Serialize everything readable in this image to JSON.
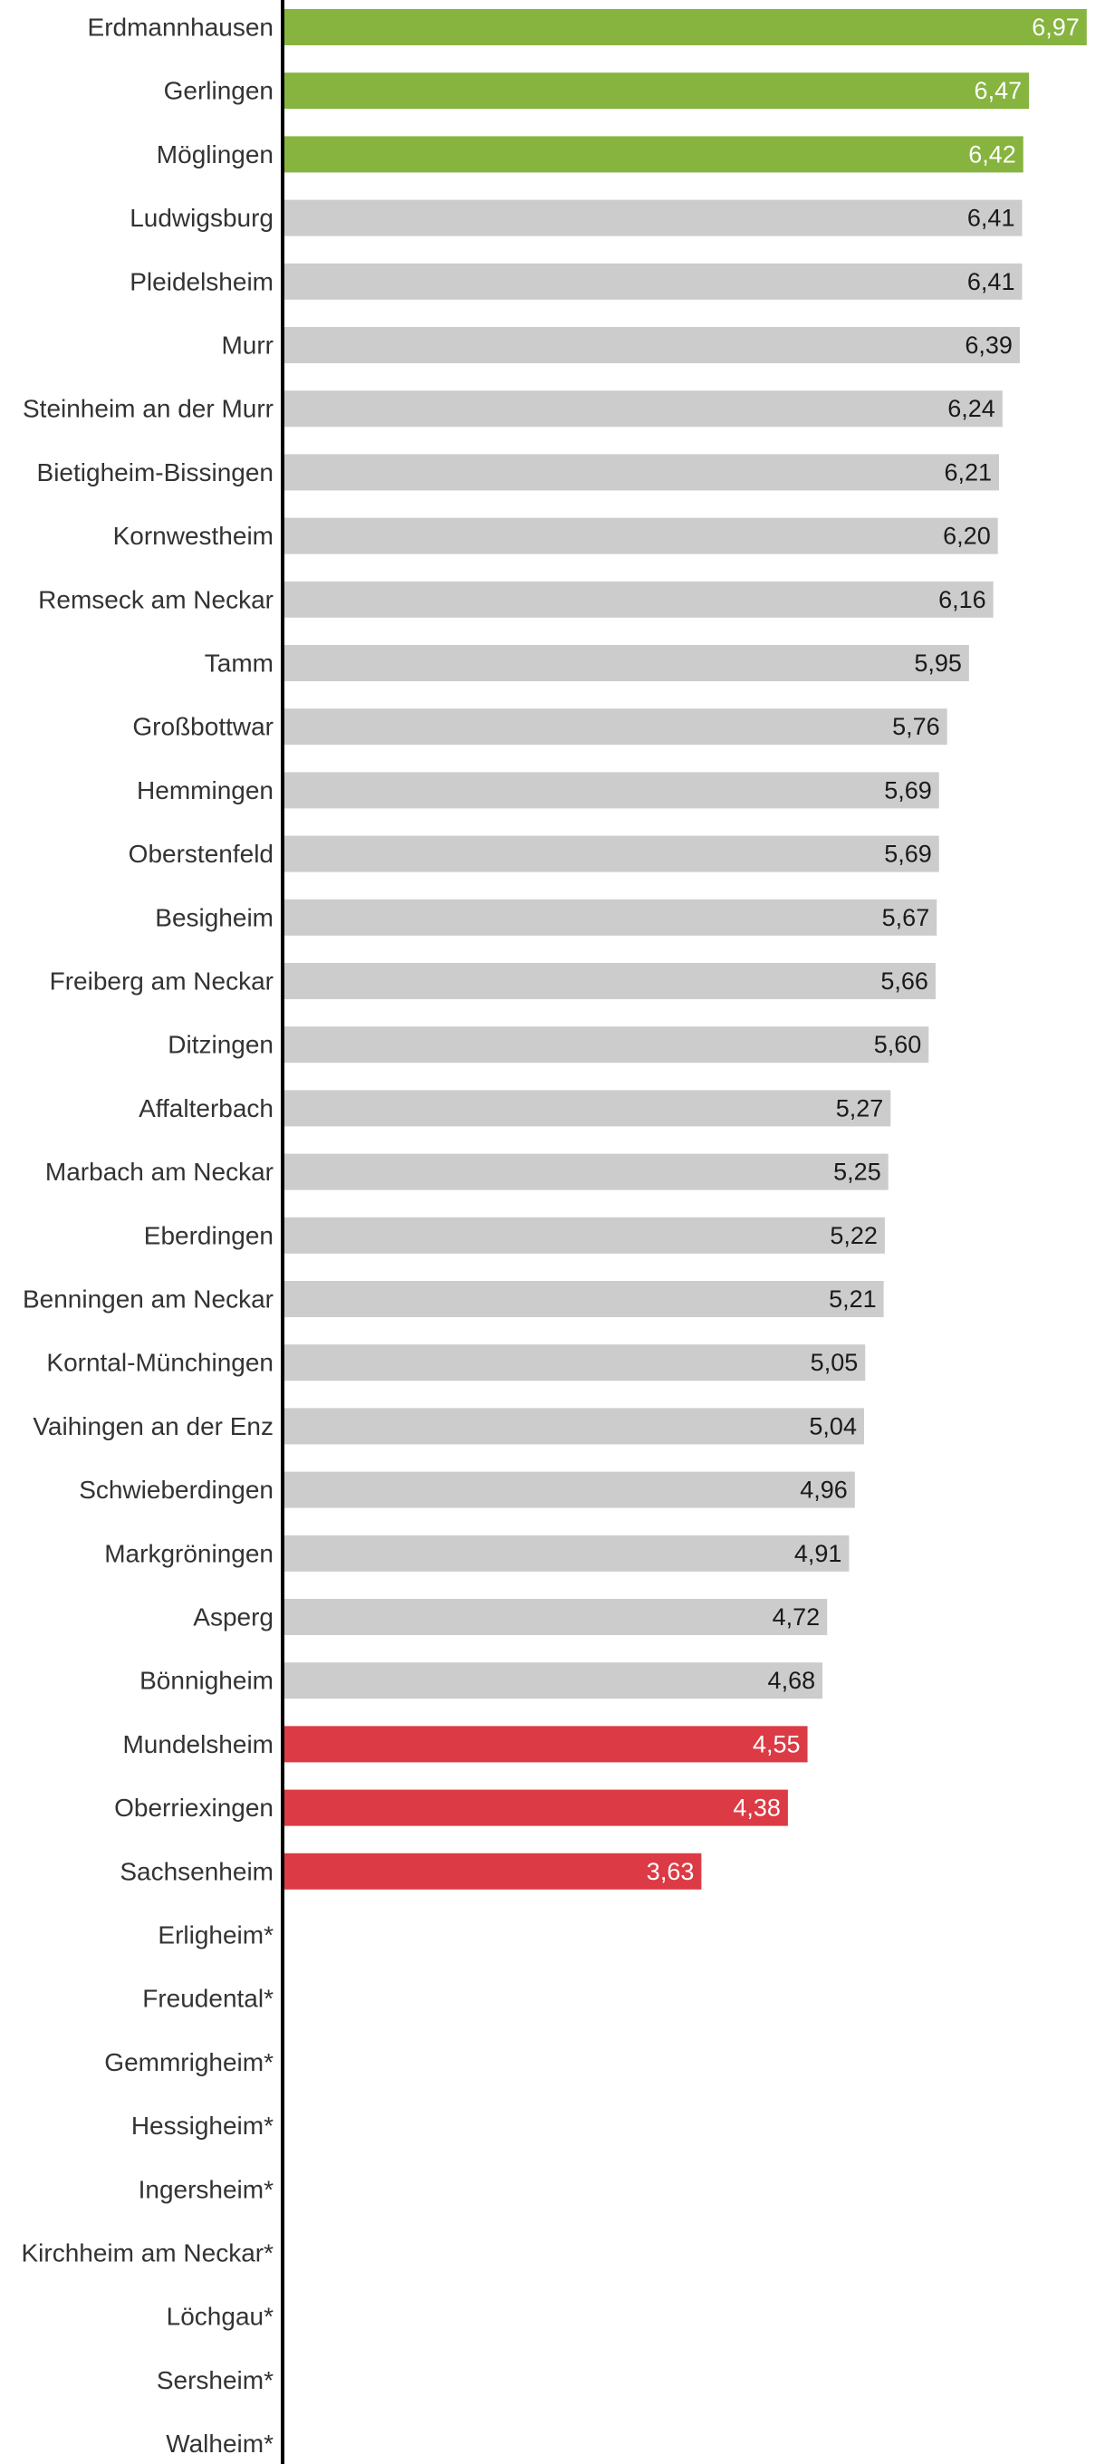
{
  "chart_data": {
    "type": "bar",
    "orientation": "horizontal",
    "title": "",
    "xlabel": "",
    "ylabel": "",
    "xlim": [
      0,
      7.05
    ],
    "grid": false,
    "legend": "none",
    "value_labels": true,
    "colors": {
      "top": "#87b33f",
      "default": "#cccccc",
      "bottom": "#dc3a44",
      "axis": "#000000",
      "category_text": "#333333",
      "value_text_dark": "#1a1a1a",
      "value_text_light": "#ffffff"
    },
    "categories": [
      "Erdmannhausen",
      "Gerlingen",
      "Möglingen",
      "Ludwigsburg",
      "Pleidelsheim",
      "Murr",
      "Steinheim an der Murr",
      "Bietigheim-Bissingen",
      "Kornwestheim",
      "Remseck am Neckar",
      "Tamm",
      "Großbottwar",
      "Hemmingen",
      "Oberstenfeld",
      "Besigheim",
      "Freiberg am Neckar",
      "Ditzingen",
      "Affalterbach",
      "Marbach am Neckar",
      "Eberdingen",
      "Benningen am Neckar",
      "Korntal-Münchingen",
      "Vaihingen an der Enz",
      "Schwieberdingen",
      "Markgröningen",
      "Asperg",
      "Bönnigheim",
      "Mundelsheim",
      "Oberriexingen",
      "Sachsenheim",
      "Erligheim*",
      "Freudental*",
      "Gemmrigheim*",
      "Hessigheim*",
      "Ingersheim*",
      "Kirchheim am Neckar*",
      "Löchgau*",
      "Sersheim*",
      "Walheim*"
    ],
    "values": [
      6.97,
      6.47,
      6.42,
      6.41,
      6.41,
      6.39,
      6.24,
      6.21,
      6.2,
      6.16,
      5.95,
      5.76,
      5.69,
      5.69,
      5.67,
      5.66,
      5.6,
      5.27,
      5.25,
      5.22,
      5.21,
      5.05,
      5.04,
      4.96,
      4.91,
      4.72,
      4.68,
      4.55,
      4.38,
      3.63,
      null,
      null,
      null,
      null,
      null,
      null,
      null,
      null,
      null
    ],
    "value_labels_text": [
      "6,97",
      "6,47",
      "6,42",
      "6,41",
      "6,41",
      "6,39",
      "6,24",
      "6,21",
      "6,20",
      "6,16",
      "5,95",
      "5,76",
      "5,69",
      "5,69",
      "5,67",
      "5,66",
      "5,60",
      "5,27",
      "5,25",
      "5,22",
      "5,21",
      "5,05",
      "5,04",
      "4,96",
      "4,91",
      "4,72",
      "4,68",
      "4,55",
      "4,38",
      "3,63",
      "",
      "",
      "",
      "",
      "",
      "",
      "",
      "",
      ""
    ],
    "groups": [
      "top",
      "top",
      "top",
      "default",
      "default",
      "default",
      "default",
      "default",
      "default",
      "default",
      "default",
      "default",
      "default",
      "default",
      "default",
      "default",
      "default",
      "default",
      "default",
      "default",
      "default",
      "default",
      "default",
      "default",
      "default",
      "default",
      "default",
      "bottom",
      "bottom",
      "bottom",
      "none",
      "none",
      "none",
      "none",
      "none",
      "none",
      "none",
      "none",
      "none"
    ]
  }
}
